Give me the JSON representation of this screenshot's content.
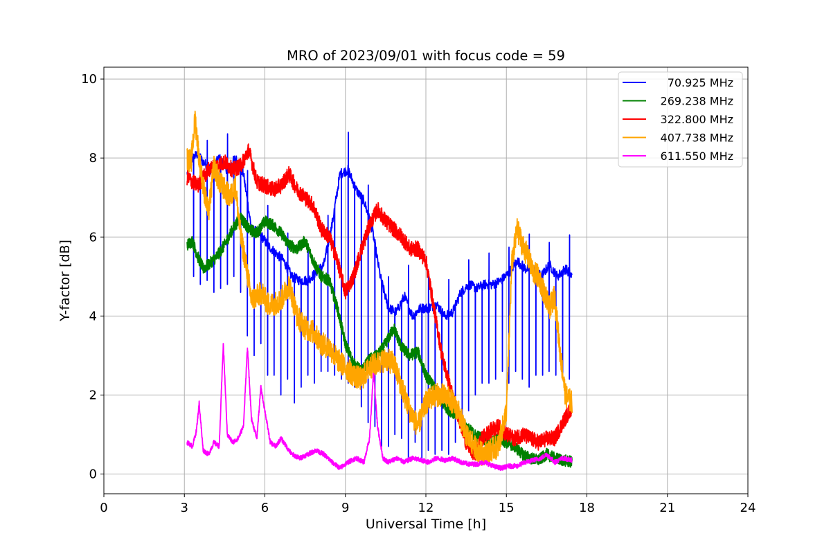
{
  "chart_data": {
    "type": "line",
    "title": "MRO of 2023/09/01 with focus code = 59",
    "xlabel": "Universal Time [h]",
    "ylabel": "Y-factor [dB]",
    "xlim": [
      0,
      24
    ],
    "ylim": [
      -0.5,
      10.3
    ],
    "xticks": [
      0,
      3,
      6,
      9,
      12,
      15,
      18,
      21,
      24
    ],
    "yticks": [
      0,
      2,
      4,
      6,
      8,
      10
    ],
    "grid": true,
    "legend_position": "top-right",
    "series": [
      {
        "name": "70.925 MHz",
        "color": "#0000ff",
        "x": [
          3.1,
          3.3,
          3.5,
          3.7,
          4.0,
          4.3,
          4.6,
          4.9,
          5.2,
          5.5,
          5.8,
          6.1,
          6.4,
          6.7,
          7.0,
          7.3,
          7.6,
          7.9,
          8.2,
          8.5,
          8.8,
          9.1,
          9.4,
          9.7,
          10.0,
          10.3,
          10.6,
          10.9,
          11.2,
          11.5,
          11.8,
          12.1,
          12.4,
          12.7,
          13.0,
          13.3,
          13.6,
          13.9,
          14.2,
          14.5,
          14.8,
          15.1,
          15.4,
          15.7,
          16.0,
          16.3,
          16.6,
          16.9,
          17.2,
          17.45
        ],
        "y": [
          7.6,
          8.0,
          8.1,
          7.9,
          7.7,
          8.0,
          7.7,
          8.0,
          7.6,
          6.2,
          6.1,
          5.8,
          5.6,
          5.4,
          5.0,
          4.9,
          4.9,
          5.1,
          5.3,
          6.3,
          7.6,
          7.7,
          7.2,
          6.9,
          6.2,
          5.0,
          4.2,
          4.1,
          4.5,
          4.0,
          4.2,
          4.2,
          4.3,
          4.0,
          4.1,
          4.6,
          4.8,
          4.7,
          4.8,
          4.8,
          4.9,
          5.1,
          5.4,
          5.2,
          5.2,
          5.0,
          5.3,
          5.0,
          5.2,
          5.0
        ],
        "dip_every_h": 0.25,
        "dip_values": [
          5.0,
          4.8,
          4.9,
          4.6,
          4.7,
          4.8,
          5.0,
          4.6,
          3.5,
          3.0,
          3.3,
          2.5,
          2.5,
          2.0,
          2.4,
          1.8,
          2.2,
          2.5,
          2.3,
          2.6,
          2.6,
          2.5,
          2.4,
          2.3,
          2.2,
          1.7,
          1.3,
          1.2,
          0.7,
          0.7,
          1.0,
          0.9,
          0.3,
          0.8,
          0.4,
          0.6,
          0.5,
          0.6,
          0.5,
          0.8,
          1.2,
          1.6,
          2.0,
          2.3,
          2.3,
          2.4,
          2.6,
          2.3,
          2.6,
          2.4,
          2.2,
          2.5,
          2.5,
          2.6,
          2.5,
          2.4,
          2.4,
          2.3
        ]
      },
      {
        "name": "269.238 MHz",
        "color": "#008000",
        "x": [
          3.1,
          3.3,
          3.5,
          3.7,
          3.9,
          4.2,
          4.5,
          4.8,
          5.1,
          5.4,
          5.7,
          6.0,
          6.3,
          6.6,
          6.9,
          7.2,
          7.5,
          7.8,
          8.1,
          8.4,
          8.7,
          9.0,
          9.3,
          9.6,
          9.9,
          10.2,
          10.5,
          10.8,
          11.1,
          11.4,
          11.7,
          12.0,
          12.3,
          12.6,
          12.9,
          13.2,
          13.5,
          13.8,
          14.1,
          14.4,
          14.7,
          15.0,
          15.3,
          15.6,
          15.9,
          16.2,
          16.5,
          16.8,
          17.1,
          17.45
        ],
        "y": [
          5.8,
          5.9,
          5.5,
          5.2,
          5.3,
          5.5,
          5.8,
          6.2,
          6.5,
          6.2,
          6.1,
          6.4,
          6.3,
          6.1,
          5.8,
          5.7,
          5.9,
          5.4,
          5.0,
          4.9,
          4.2,
          3.3,
          2.8,
          2.6,
          2.9,
          3.0,
          3.3,
          3.7,
          3.2,
          3.0,
          3.1,
          2.5,
          2.2,
          1.8,
          1.6,
          1.5,
          1.2,
          1.0,
          0.9,
          0.8,
          0.9,
          0.8,
          0.7,
          0.5,
          0.4,
          0.35,
          0.5,
          0.4,
          0.35,
          0.3
        ],
        "noise": 0.15
      },
      {
        "name": "322.800 MHz",
        "color": "#ff0000",
        "x": [
          3.1,
          3.3,
          3.5,
          3.7,
          3.9,
          4.2,
          4.5,
          4.8,
          5.1,
          5.4,
          5.7,
          6.0,
          6.3,
          6.6,
          6.9,
          7.2,
          7.5,
          7.8,
          8.1,
          8.4,
          8.7,
          9.0,
          9.3,
          9.6,
          9.9,
          10.2,
          10.5,
          10.8,
          11.1,
          11.4,
          11.7,
          12.0,
          12.3,
          12.6,
          12.9,
          13.2,
          13.5,
          13.8,
          14.1,
          14.4,
          14.7,
          15.0,
          15.3,
          15.6,
          15.9,
          16.2,
          16.5,
          16.8,
          17.1,
          17.45
        ],
        "y": [
          7.5,
          7.4,
          7.3,
          7.5,
          7.7,
          7.8,
          7.9,
          7.7,
          7.8,
          8.2,
          7.4,
          7.3,
          7.2,
          7.3,
          7.6,
          7.2,
          7.0,
          6.8,
          6.2,
          6.0,
          5.4,
          4.6,
          5.0,
          5.7,
          6.3,
          6.7,
          6.4,
          6.2,
          6.0,
          5.7,
          5.7,
          5.4,
          4.2,
          3.0,
          2.2,
          1.5,
          0.8,
          0.5,
          0.9,
          1.1,
          1.2,
          1.0,
          0.9,
          1.0,
          0.9,
          0.8,
          0.9,
          0.9,
          1.3,
          1.7
        ],
        "noise": 0.2
      },
      {
        "name": "407.738 MHz",
        "color": "#ffa500",
        "x": [
          3.1,
          3.25,
          3.4,
          3.55,
          3.7,
          3.9,
          4.1,
          4.3,
          4.5,
          4.7,
          4.9,
          5.1,
          5.3,
          5.5,
          5.7,
          5.9,
          6.1,
          6.3,
          6.6,
          6.9,
          7.2,
          7.5,
          7.8,
          8.1,
          8.4,
          8.7,
          9.0,
          9.3,
          9.6,
          9.9,
          10.2,
          10.5,
          10.8,
          11.1,
          11.4,
          11.7,
          12.0,
          12.3,
          12.6,
          12.9,
          13.2,
          13.5,
          13.8,
          14.1,
          14.4,
          14.7,
          15.0,
          15.2,
          15.4,
          15.6,
          15.8,
          16.0,
          16.2,
          16.4,
          16.6,
          16.8,
          17.0,
          17.2,
          17.45
        ],
        "y": [
          8.0,
          7.9,
          9.0,
          8.0,
          7.3,
          6.6,
          7.8,
          7.4,
          7.2,
          7.0,
          7.3,
          6.0,
          5.3,
          4.4,
          4.5,
          4.6,
          4.3,
          4.3,
          4.4,
          4.8,
          4.0,
          3.7,
          3.6,
          3.3,
          3.2,
          2.9,
          2.7,
          2.5,
          2.4,
          2.7,
          2.8,
          2.9,
          2.8,
          2.2,
          1.6,
          1.2,
          1.8,
          2.0,
          2.0,
          1.9,
          1.6,
          1.0,
          0.7,
          0.5,
          0.6,
          0.7,
          1.6,
          5.3,
          6.2,
          5.8,
          5.5,
          5.1,
          5.0,
          4.6,
          4.2,
          4.5,
          3.1,
          2.0,
          1.8
        ],
        "noise": 0.3
      },
      {
        "name": "611.550 MHz",
        "color": "#ff00ff",
        "x": [
          3.1,
          3.3,
          3.45,
          3.55,
          3.7,
          3.9,
          4.1,
          4.3,
          4.45,
          4.6,
          4.8,
          5.0,
          5.2,
          5.35,
          5.5,
          5.7,
          5.85,
          6.0,
          6.2,
          6.4,
          6.6,
          6.8,
          7.0,
          7.3,
          7.6,
          7.9,
          8.2,
          8.5,
          8.8,
          9.1,
          9.4,
          9.7,
          9.9,
          10.05,
          10.2,
          10.4,
          10.6,
          10.9,
          11.2,
          11.5,
          11.8,
          12.1,
          12.4,
          12.7,
          13.0,
          13.3,
          13.6,
          13.9,
          14.2,
          14.5,
          14.8,
          15.1,
          15.4,
          15.7,
          16.0,
          16.3,
          16.5,
          16.8,
          17.1,
          17.45
        ],
        "y": [
          0.8,
          0.7,
          1.1,
          1.8,
          0.6,
          0.5,
          0.8,
          0.7,
          3.3,
          1.0,
          0.8,
          0.9,
          1.2,
          3.2,
          1.4,
          0.9,
          2.2,
          1.6,
          0.8,
          0.7,
          0.9,
          0.7,
          0.5,
          0.4,
          0.5,
          0.6,
          0.5,
          0.3,
          0.15,
          0.3,
          0.4,
          0.3,
          0.9,
          2.6,
          1.2,
          0.4,
          0.3,
          0.4,
          0.3,
          0.4,
          0.35,
          0.3,
          0.4,
          0.35,
          0.4,
          0.3,
          0.25,
          0.25,
          0.3,
          0.2,
          0.15,
          0.2,
          0.2,
          0.3,
          0.35,
          0.4,
          0.5,
          0.3,
          0.4,
          0.35
        ],
        "noise": 0.06
      }
    ]
  }
}
